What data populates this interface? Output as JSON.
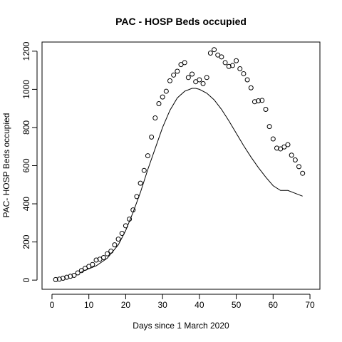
{
  "chart_data": {
    "type": "scatter",
    "title": "PAC - HOSP Beds occupied",
    "xlabel": "Days since 1 March 2020",
    "ylabel": "PAC- HOSP Beds occupied",
    "xlim": [
      -2.7,
      72.7
    ],
    "ylim": [
      -48,
      1248
    ],
    "xticks": [
      0,
      10,
      20,
      30,
      40,
      50,
      60,
      70
    ],
    "yticks": [
      0,
      200,
      400,
      600,
      800,
      1000,
      1200
    ],
    "grid": false,
    "legend": "none",
    "colors": {
      "points": "#000000",
      "line": "#000000",
      "axes": "#000000"
    },
    "series": [
      {
        "type": "points",
        "x": [
          1,
          2,
          3,
          4,
          5,
          6,
          7,
          8,
          9,
          10,
          11,
          12,
          13,
          14,
          15,
          16,
          17,
          18,
          19,
          20,
          21,
          22,
          23,
          24,
          25,
          26,
          27,
          28,
          29,
          30,
          31,
          32,
          33,
          34,
          35,
          36,
          37,
          38,
          39,
          40,
          41,
          42,
          43,
          44,
          45,
          46,
          47,
          48,
          49,
          50,
          51,
          52,
          53,
          54,
          55,
          56,
          57,
          58,
          59,
          60,
          61,
          62,
          63,
          64,
          65,
          66,
          67,
          68
        ],
        "y": [
          3,
          5,
          10,
          15,
          20,
          25,
          38,
          50,
          62,
          72,
          82,
          105,
          110,
          118,
          138,
          152,
          185,
          215,
          245,
          285,
          320,
          368,
          438,
          508,
          575,
          652,
          750,
          850,
          925,
          960,
          990,
          1045,
          1075,
          1095,
          1130,
          1140,
          1062,
          1080,
          1040,
          1050,
          1030,
          1062,
          1190,
          1208,
          1180,
          1170,
          1140,
          1120,
          1125,
          1150,
          1108,
          1082,
          1050,
          1008,
          935,
          940,
          942,
          895,
          805,
          740,
          692,
          688,
          698,
          710,
          655,
          630,
          595,
          560
        ]
      },
      {
        "type": "line",
        "x": [
          8,
          12,
          15,
          18,
          20,
          22,
          24,
          26,
          28,
          30,
          32,
          34,
          36,
          38,
          39,
          40,
          42,
          44,
          46,
          48,
          50,
          52,
          54,
          56,
          58,
          60,
          62,
          64,
          66,
          68
        ],
        "y": [
          44,
          75,
          115,
          185,
          260,
          355,
          460,
          580,
          690,
          800,
          890,
          955,
          990,
          1005,
          1005,
          1000,
          980,
          945,
          895,
          835,
          770,
          705,
          645,
          590,
          540,
          495,
          470,
          470,
          455,
          440
        ]
      }
    ]
  }
}
